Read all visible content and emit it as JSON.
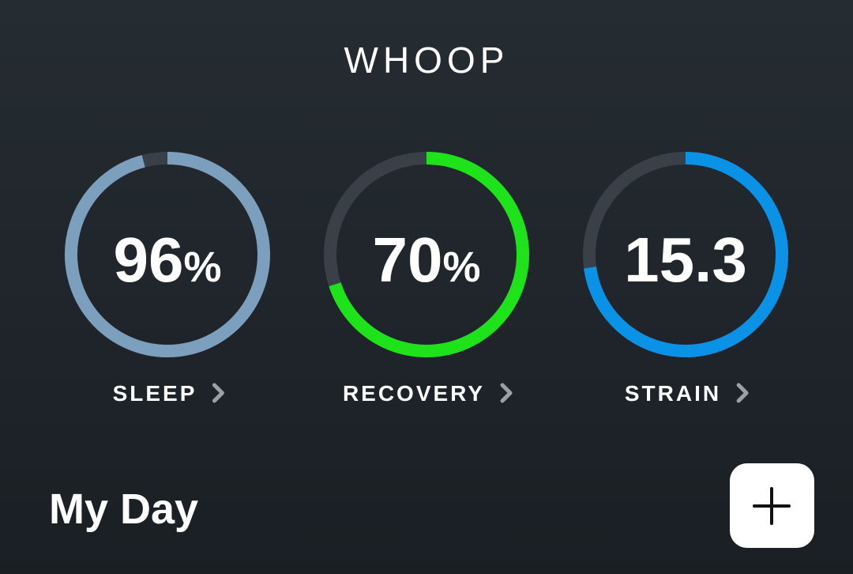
{
  "header": {
    "title": "WHOOP"
  },
  "metrics": [
    {
      "label": "SLEEP",
      "value": 96,
      "unit": "%",
      "range": [
        0,
        100
      ],
      "color": "#7c9fbd"
    },
    {
      "label": "RECOVERY",
      "value": 70,
      "unit": "%",
      "range": [
        0,
        100
      ],
      "color": "#1ee31b"
    },
    {
      "label": "STRAIN",
      "value": 15.3,
      "range": [
        0,
        21
      ],
      "color": "#0a92e6"
    }
  ],
  "section": {
    "title": "My Day"
  }
}
